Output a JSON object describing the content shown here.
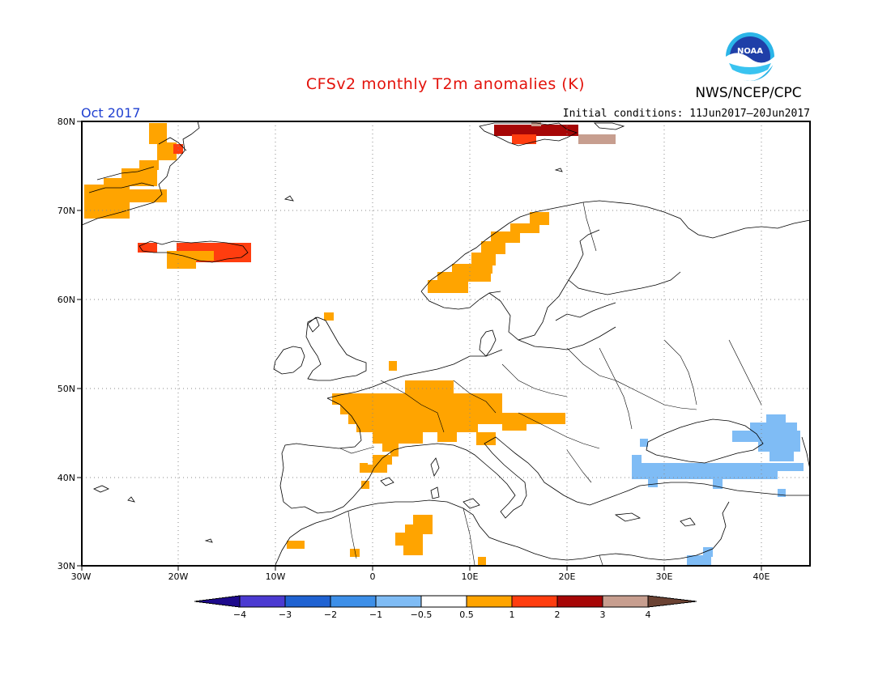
{
  "title": "CFSv2 monthly T2m anomalies (K)",
  "agency": "NWS/NCEP/CPC",
  "logo_text": "NOAA",
  "month_label": "Oct 2017",
  "initial_conditions": "Initial conditions: 11Jun2017–20Jun2017",
  "map": {
    "lon_range": [
      -30,
      45
    ],
    "lat_range": [
      30,
      80
    ],
    "x_ticks": [
      "30W",
      "20W",
      "10W",
      "0",
      "10E",
      "20E",
      "30E",
      "40E"
    ],
    "y_ticks": [
      "80N",
      "70N",
      "60N",
      "50N",
      "40N",
      "30N"
    ],
    "gridlines": "dotted"
  },
  "colorbar": {
    "labels": [
      "−4",
      "−3",
      "−2",
      "−1",
      "−0.5",
      "0.5",
      "1",
      "2",
      "3",
      "4"
    ],
    "colors": [
      "#1e0a8c",
      "#4b3ad1",
      "#1f62d2",
      "#3d8fe8",
      "#7fbcf5",
      "#ffffff",
      "#ffa400",
      "#ff3d0f",
      "#a60606",
      "#c79e8f",
      "#6b4233"
    ]
  },
  "anomaly_regions": [
    {
      "region": "East Greenland coast",
      "category": "0.5 to 1",
      "color": "#ffa400"
    },
    {
      "region": "Iceland",
      "category": "1 to 2",
      "color": "#ff3d0f"
    },
    {
      "region": "Svalbard",
      "category": "2 to 3",
      "color": "#a60606"
    },
    {
      "region": "Norwegian coast",
      "category": "0.5 to 1",
      "color": "#ffa400"
    },
    {
      "region": "France / Central Europe / Alps",
      "category": "0.5 to 1",
      "color": "#ffa400"
    },
    {
      "region": "Eastern Spain",
      "category": "0.5 to 1",
      "color": "#ffa400"
    },
    {
      "region": "Algeria",
      "category": "0.5 to 1",
      "color": "#ffa400"
    },
    {
      "region": "Black Sea / Caucasus / Turkey",
      "category": "−1 to −0.5",
      "color": "#7fbcf5"
    }
  ]
}
